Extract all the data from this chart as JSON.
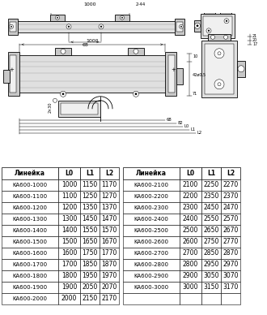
{
  "table_left": {
    "header": [
      "Линейка",
      "L0",
      "L1",
      "L2"
    ],
    "rows": [
      [
        "KA600-1000",
        "1000",
        "1150",
        "1170"
      ],
      [
        "KA600-1100",
        "1100",
        "1250",
        "1270"
      ],
      [
        "KA600-1200",
        "1200",
        "1350",
        "1370"
      ],
      [
        "KA600-1300",
        "1300",
        "1450",
        "1470"
      ],
      [
        "KA600-1400",
        "1400",
        "1550",
        "1570"
      ],
      [
        "KA600-1500",
        "1500",
        "1650",
        "1670"
      ],
      [
        "KA600-1600",
        "1600",
        "1750",
        "1770"
      ],
      [
        "KA600-1700",
        "1700",
        "1850",
        "1870"
      ],
      [
        "KA600-1800",
        "1800",
        "1950",
        "1970"
      ],
      [
        "KA600-1900",
        "1900",
        "2050",
        "2070"
      ],
      [
        "KA600-2000",
        "2000",
        "2150",
        "2170"
      ]
    ]
  },
  "table_right": {
    "header": [
      "Линейка",
      "L0",
      "L1",
      "L2"
    ],
    "rows": [
      [
        "KA600-2100",
        "2100",
        "2250",
        "2270"
      ],
      [
        "KA600-2200",
        "2200",
        "2350",
        "2370"
      ],
      [
        "KA600-2300",
        "2300",
        "2450",
        "2470"
      ],
      [
        "KA600-2400",
        "2400",
        "2550",
        "2570"
      ],
      [
        "KA600-2500",
        "2500",
        "2650",
        "2670"
      ],
      [
        "KA600-2600",
        "2600",
        "2750",
        "2770"
      ],
      [
        "KA600-2700",
        "2700",
        "2850",
        "2870"
      ],
      [
        "KA600-2800",
        "2800",
        "2950",
        "2970"
      ],
      [
        "KA600-2900",
        "2900",
        "3050",
        "3070"
      ],
      [
        "KA600-3000",
        "3000",
        "3150",
        "3170"
      ],
      [
        "",
        "",
        "",
        ""
      ]
    ]
  },
  "dim_1000": "1000",
  "dim_244": "2·44",
  "dim_68": "68",
  "dim_10": "10",
  "dim_42": "42ø0,5",
  "dim_71": "71",
  "dim_82": "82",
  "dim_L0": "L0",
  "dim_L1": "L1",
  "dim_L2": "L2",
  "dim_21": "21",
  "dim_20": "20",
  "dim_17": "17",
  "dim_2x30": "2×30",
  "lc": "#cccccc",
  "lm": "#aaaaaa",
  "ld": "#888888"
}
